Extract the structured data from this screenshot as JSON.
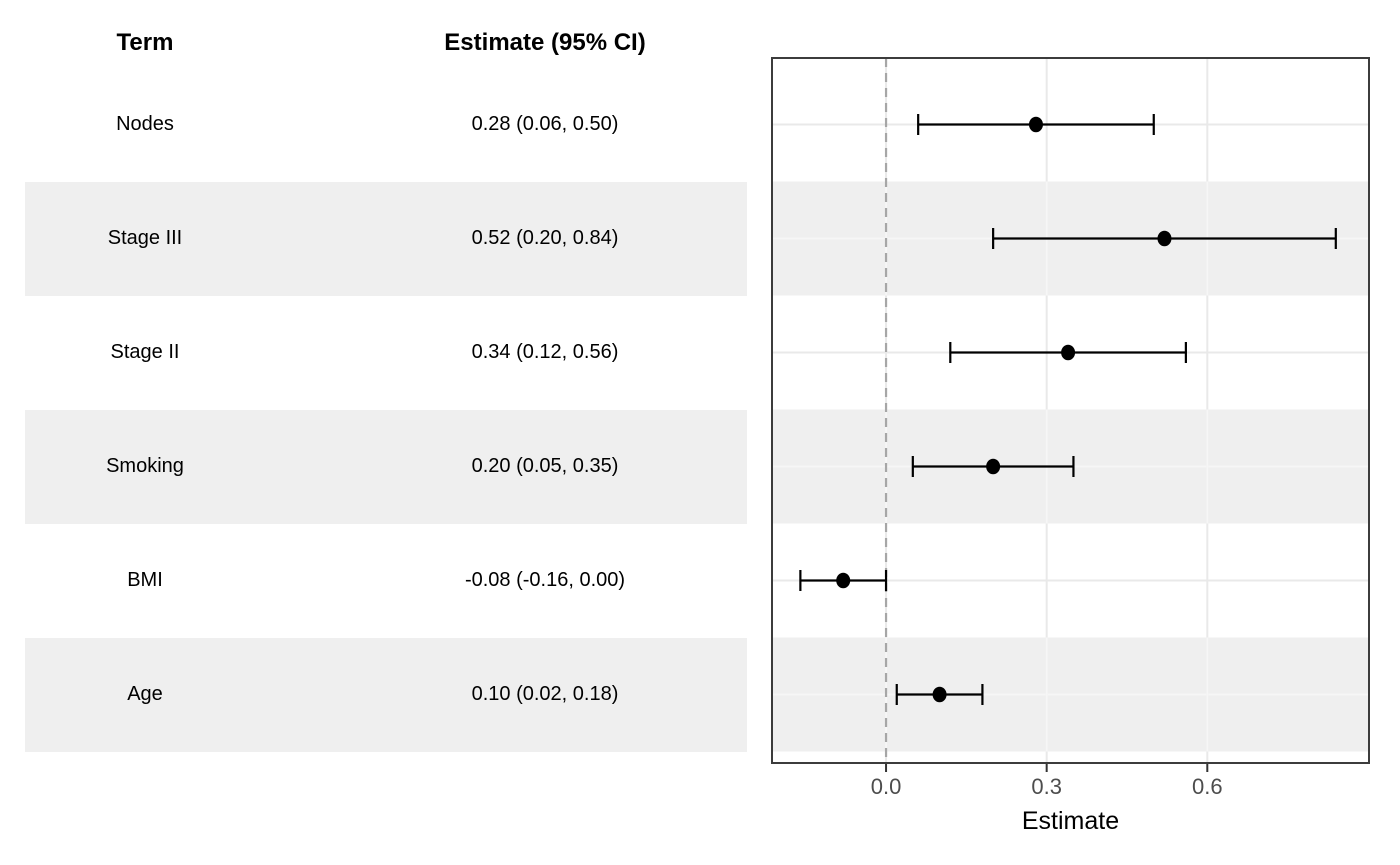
{
  "table": {
    "term_header": "Term",
    "estimate_header": "Estimate (95% CI)",
    "rows": [
      {
        "term": "Nodes",
        "estimate_label": "0.28 (0.06, 0.50)",
        "striped": false
      },
      {
        "term": "Stage III",
        "estimate_label": "0.52 (0.20, 0.84)",
        "striped": true
      },
      {
        "term": "Stage II",
        "estimate_label": "0.34 (0.12, 0.56)",
        "striped": false
      },
      {
        "term": "Smoking",
        "estimate_label": "0.20 (0.05, 0.35)",
        "striped": true
      },
      {
        "term": "BMI",
        "estimate_label": "-0.08 (-0.16, 0.00)",
        "striped": false
      },
      {
        "term": "Age",
        "estimate_label": "0.10 (0.02, 0.18)",
        "striped": true
      }
    ]
  },
  "chart_data": {
    "type": "scatter",
    "subtype": "forest-plot",
    "categories": [
      "Nodes",
      "Stage III",
      "Stage II",
      "Smoking",
      "BMI",
      "Age"
    ],
    "series": [
      {
        "name": "Estimate (95% CI)",
        "estimates": [
          0.28,
          0.52,
          0.34,
          0.2,
          -0.08,
          0.1
        ],
        "lower": [
          0.06,
          0.2,
          0.12,
          0.05,
          -0.16,
          0.02
        ],
        "upper": [
          0.5,
          0.84,
          0.56,
          0.35,
          0.0,
          0.18
        ]
      }
    ],
    "xlabel": "Estimate",
    "x_ticks": [
      {
        "label": "0.0",
        "value": 0.0
      },
      {
        "label": "0.3",
        "value": 0.3
      },
      {
        "label": "0.6",
        "value": 0.6
      }
    ],
    "xlim": [
      -0.213,
      0.902
    ],
    "reference_line": 0.0,
    "grid": true,
    "legend": "none",
    "striped_categories": [
      "Stage III",
      "Smoking",
      "Age"
    ]
  },
  "colors": {
    "stripe": "#EFEFEF",
    "grid_on_white": "#E9E9E9",
    "grid_on_stripe": "#F6F6F6",
    "panel_border": "#3C3C3C",
    "reference_line": "#A6A6A6",
    "tick_mark": "#333333",
    "tick_label": "#4D4D4D",
    "point": "#000000",
    "axis_title": "#000000"
  }
}
